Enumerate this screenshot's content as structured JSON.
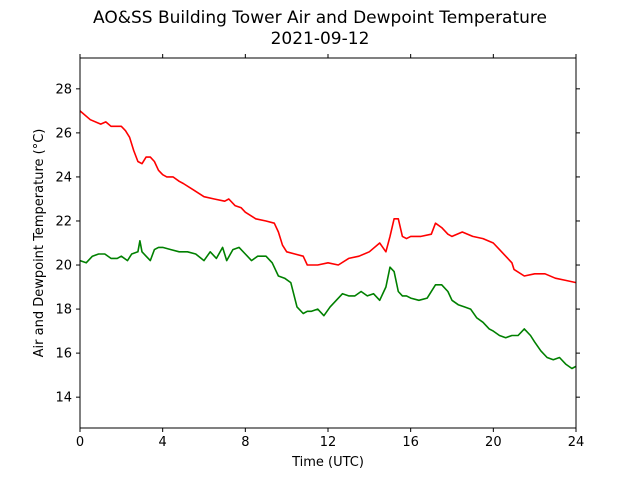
{
  "chart_data": {
    "type": "line",
    "title": "AO&SS Building Tower Air and Dewpoint Temperature",
    "subtitle": "2021-09-12",
    "xlabel": "Time (UTC)",
    "ylabel": "Air and Dewpoint Temperature (°C)",
    "xlim": [
      0,
      24
    ],
    "ylim": [
      12.6,
      29.4
    ],
    "xticks": [
      0,
      4,
      8,
      12,
      16,
      20,
      24
    ],
    "yticks": [
      14,
      16,
      18,
      20,
      22,
      24,
      26,
      28
    ],
    "grid": false,
    "series": [
      {
        "color": "#ff0000",
        "x": [
          0,
          0.5,
          1,
          1.25,
          1.5,
          1.75,
          2,
          2.2,
          2.4,
          2.6,
          2.8,
          3,
          3.2,
          3.4,
          3.6,
          3.8,
          4,
          4.2,
          4.5,
          4.8,
          5,
          5.5,
          6,
          6.5,
          7,
          7.2,
          7.5,
          7.8,
          8,
          8.5,
          9,
          9.4,
          9.6,
          9.8,
          10,
          10.4,
          10.8,
          11,
          11.5,
          12,
          12.5,
          13,
          13.5,
          14,
          14.5,
          14.8,
          15,
          15.2,
          15.4,
          15.6,
          15.8,
          16,
          16.5,
          17,
          17.2,
          17.5,
          17.8,
          18,
          18.5,
          19,
          19.5,
          20,
          20.3,
          20.6,
          20.9,
          21,
          21.5,
          22,
          22.5,
          23,
          23.5,
          24
        ],
        "values": [
          27,
          26.6,
          26.4,
          26.5,
          26.3,
          26.3,
          26.3,
          26.1,
          25.8,
          25.2,
          24.7,
          24.6,
          24.9,
          24.9,
          24.7,
          24.3,
          24.1,
          24,
          24,
          23.8,
          23.7,
          23.4,
          23.1,
          23,
          22.9,
          23,
          22.7,
          22.6,
          22.4,
          22.1,
          22,
          21.9,
          21.5,
          20.9,
          20.6,
          20.5,
          20.4,
          20,
          20,
          20.1,
          20,
          20.3,
          20.4,
          20.6,
          21,
          20.6,
          21.3,
          22.1,
          22.1,
          21.3,
          21.2,
          21.3,
          21.3,
          21.4,
          21.9,
          21.7,
          21.4,
          21.3,
          21.5,
          21.3,
          21.2,
          21,
          20.7,
          20.4,
          20.1,
          19.8,
          19.5,
          19.6,
          19.6,
          19.4,
          19.3,
          19.2
        ]
      },
      {
        "color": "#008000",
        "x": [
          0,
          0.3,
          0.6,
          0.9,
          1.2,
          1.5,
          1.8,
          2,
          2.3,
          2.5,
          2.8,
          2.9,
          3,
          3.2,
          3.4,
          3.6,
          3.8,
          4,
          4.4,
          4.8,
          5.2,
          5.6,
          6,
          6.3,
          6.6,
          6.9,
          7.1,
          7.4,
          7.7,
          8,
          8.3,
          8.6,
          9,
          9.3,
          9.6,
          9.9,
          10.2,
          10.5,
          10.8,
          11,
          11.2,
          11.5,
          11.8,
          12.1,
          12.4,
          12.7,
          13,
          13.3,
          13.6,
          13.9,
          14.2,
          14.5,
          14.8,
          15,
          15.2,
          15.4,
          15.6,
          15.8,
          16,
          16.4,
          16.8,
          17.2,
          17.5,
          17.8,
          18,
          18.3,
          18.6,
          18.9,
          19.2,
          19.5,
          19.8,
          20,
          20.3,
          20.6,
          20.9,
          21.2,
          21.5,
          21.8,
          22,
          22.3,
          22.6,
          22.9,
          23.2,
          23.5,
          23.8,
          24
        ],
        "values": [
          20.2,
          20.1,
          20.4,
          20.5,
          20.5,
          20.3,
          20.3,
          20.4,
          20.2,
          20.5,
          20.6,
          21.1,
          20.6,
          20.4,
          20.2,
          20.7,
          20.8,
          20.8,
          20.7,
          20.6,
          20.6,
          20.5,
          20.2,
          20.6,
          20.3,
          20.8,
          20.2,
          20.7,
          20.8,
          20.5,
          20.2,
          20.4,
          20.4,
          20.1,
          19.5,
          19.4,
          19.2,
          18.1,
          17.8,
          17.9,
          17.9,
          18,
          17.7,
          18.1,
          18.4,
          18.7,
          18.6,
          18.6,
          18.8,
          18.6,
          18.7,
          18.4,
          19,
          19.9,
          19.7,
          18.8,
          18.6,
          18.6,
          18.5,
          18.4,
          18.5,
          19.1,
          19.1,
          18.8,
          18.4,
          18.2,
          18.1,
          18,
          17.6,
          17.4,
          17.1,
          17,
          16.8,
          16.7,
          16.8,
          16.8,
          17.1,
          16.8,
          16.5,
          16.1,
          15.8,
          15.7,
          15.8,
          15.5,
          15.3,
          15.4
        ]
      }
    ]
  }
}
